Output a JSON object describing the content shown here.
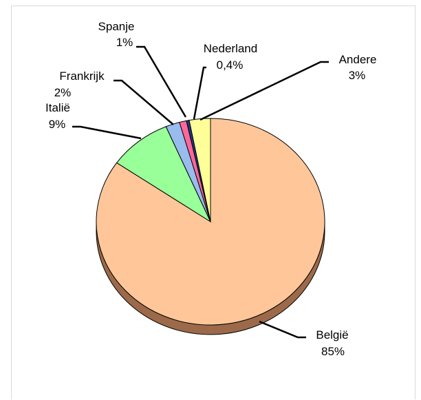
{
  "chart_data": {
    "type": "pie",
    "title": "",
    "slices": [
      {
        "name": "België",
        "value": 85,
        "label": "85%",
        "color": "#FFC799",
        "side_color": "#9C6A4A"
      },
      {
        "name": "Italië",
        "value": 9,
        "label": "9%",
        "color": "#99FF99"
      },
      {
        "name": "Frankrijk",
        "value": 2,
        "label": "2%",
        "color": "#99BBEE"
      },
      {
        "name": "Spanje",
        "value": 1,
        "label": "1%",
        "color": "#FF6699"
      },
      {
        "name": "Nederland",
        "value": 0.4,
        "label": "0,4%",
        "color": "#1A3A8A"
      },
      {
        "name": "Andere",
        "value": 3,
        "label": "3%",
        "color": "#FFFF99"
      }
    ]
  }
}
